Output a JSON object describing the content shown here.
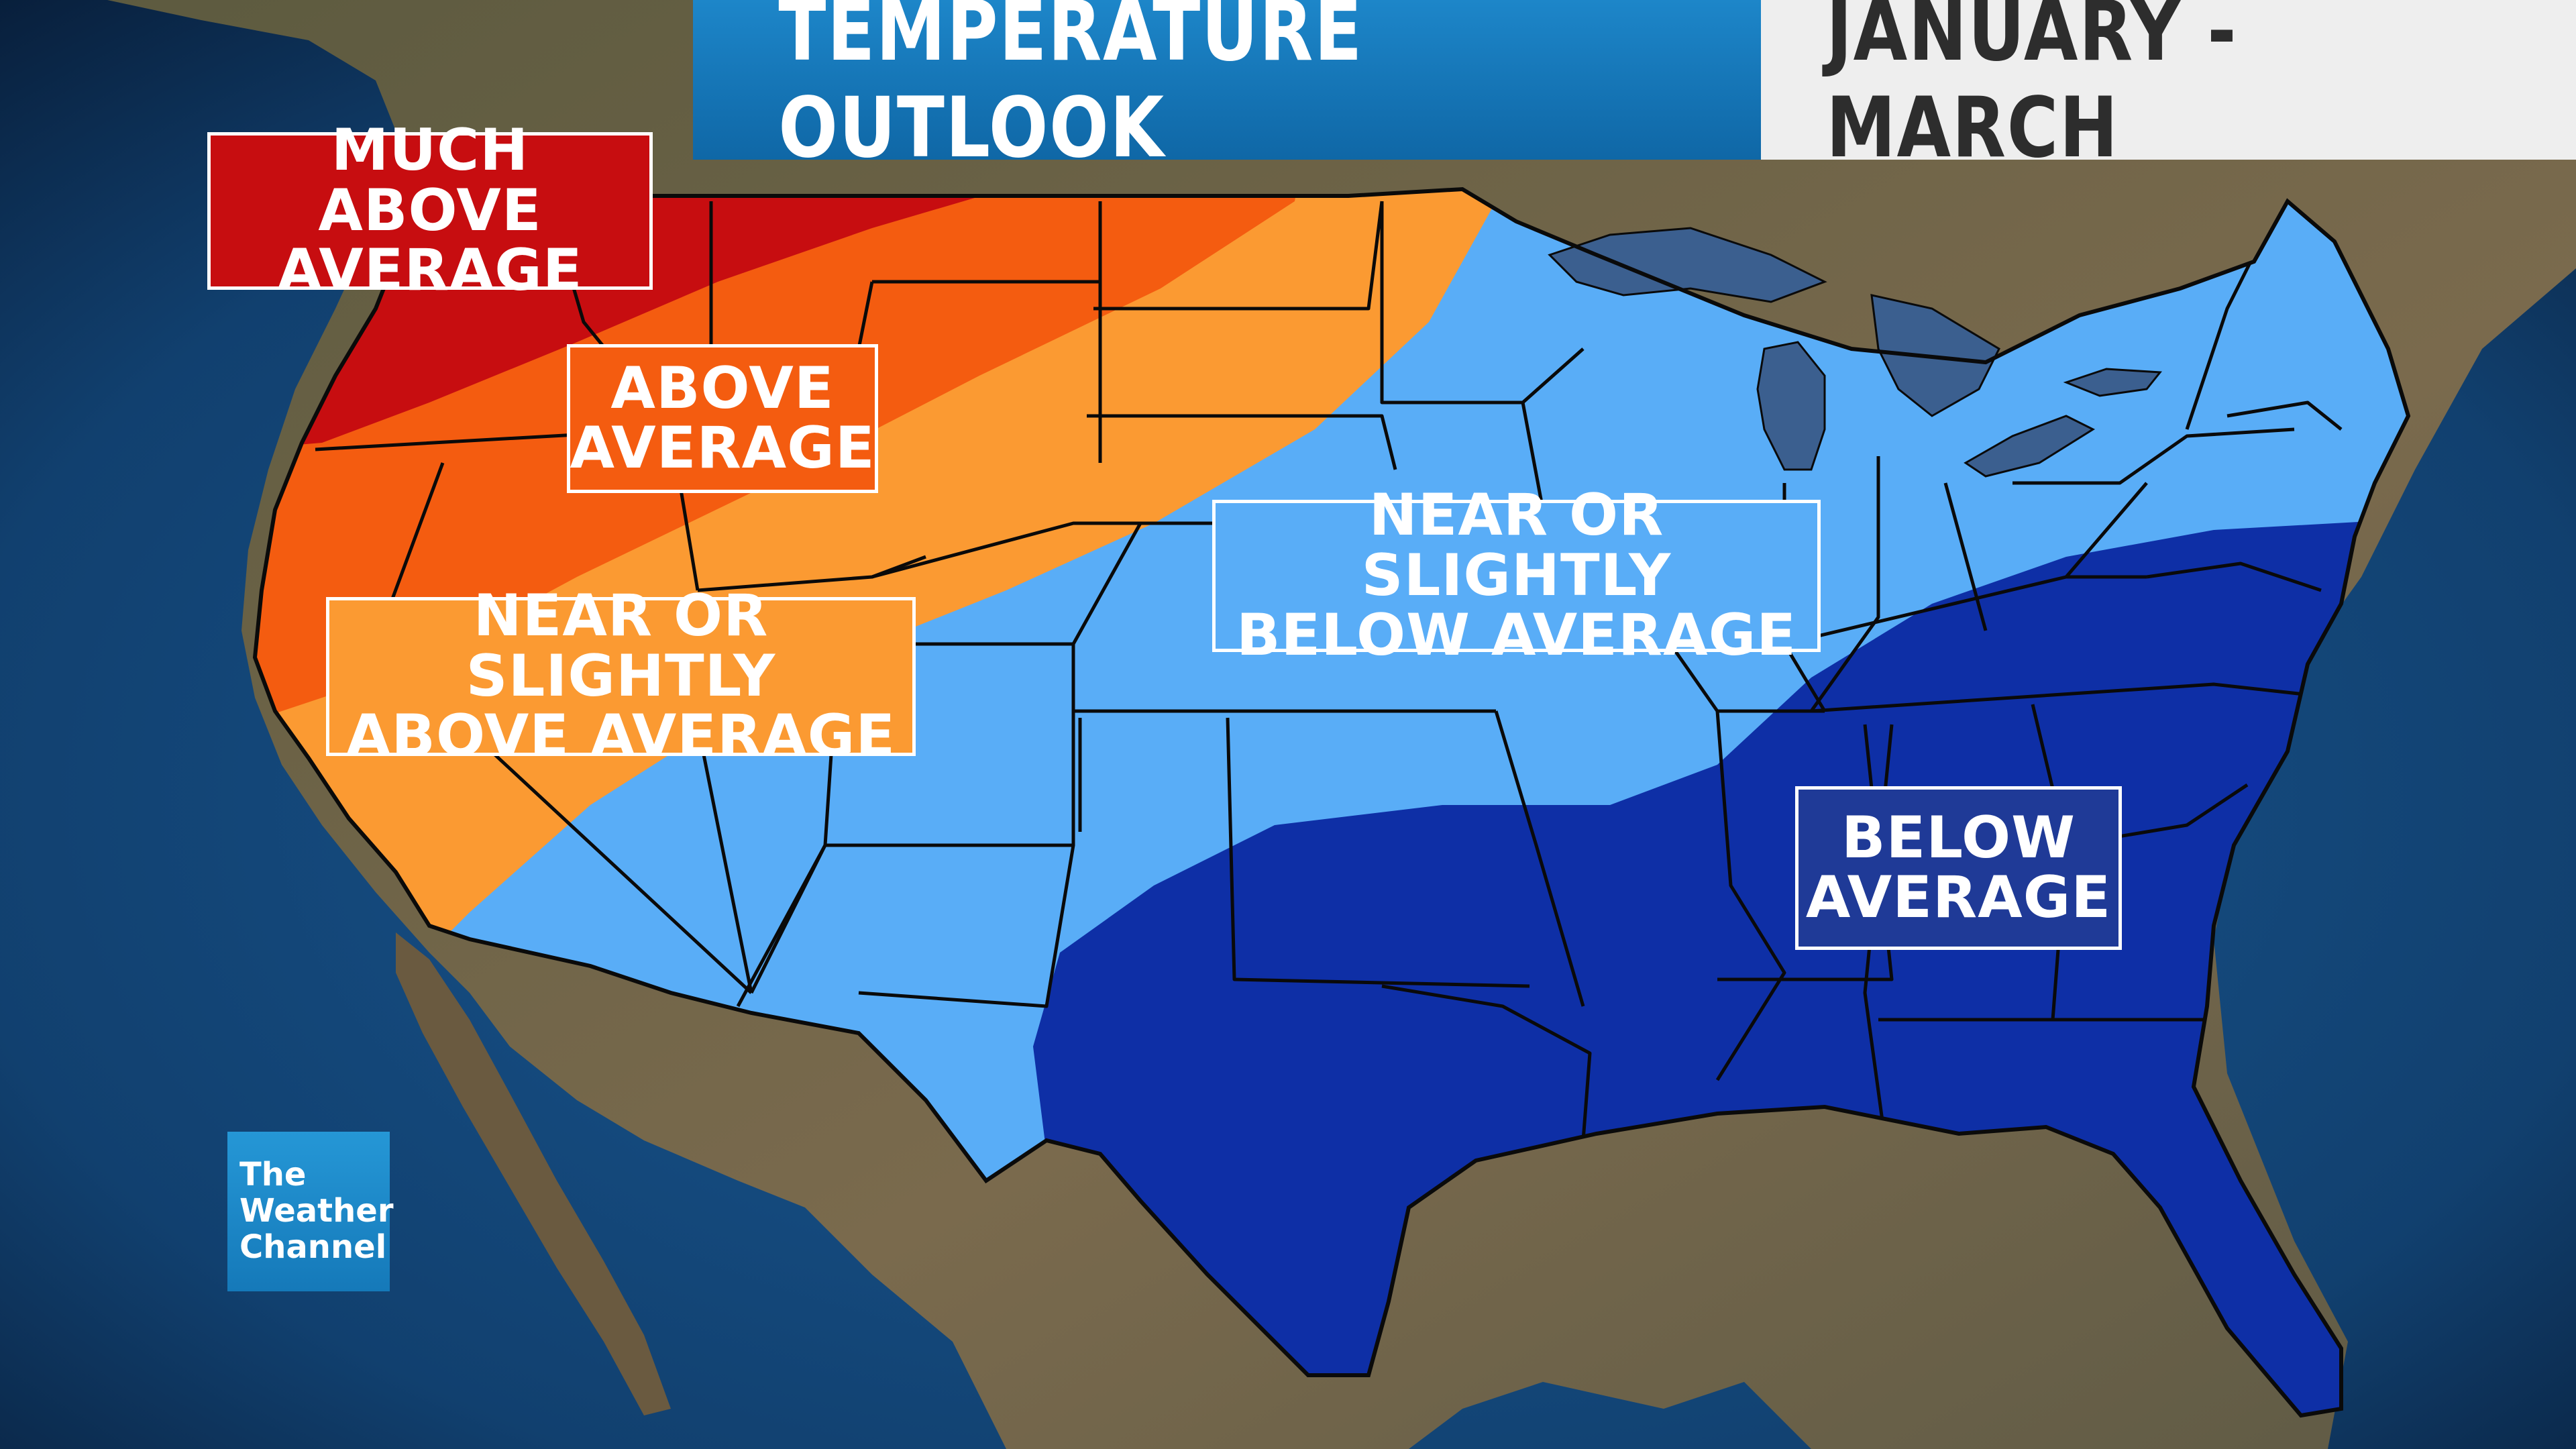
{
  "header": {
    "title": "TEMPERATURE OUTLOOK",
    "date_range": "JANUARY - MARCH"
  },
  "legend_regions": [
    {
      "id": "much-above",
      "lines": [
        "MUCH ABOVE",
        "AVERAGE"
      ],
      "color": "#c70d10"
    },
    {
      "id": "above",
      "lines": [
        "ABOVE",
        "AVERAGE"
      ],
      "color": "#f45c10"
    },
    {
      "id": "near-above",
      "lines": [
        "NEAR OR SLIGHTLY",
        "ABOVE AVERAGE"
      ],
      "color": "#fb9a32"
    },
    {
      "id": "near-below",
      "lines": [
        "NEAR OR SLIGHTLY",
        "BELOW AVERAGE"
      ],
      "color": "#59adf7"
    },
    {
      "id": "below",
      "lines": [
        "BELOW",
        "AVERAGE"
      ],
      "color": "#0e2fa6"
    }
  ],
  "logo": {
    "lines": [
      "The",
      "Weather",
      "Channel"
    ],
    "color": "#1d89c9"
  },
  "colors": {
    "ocean": "#123f73",
    "land": "#6e5f45",
    "lakes": "#3b5f8f",
    "state_borders": "#0a0a0a"
  }
}
